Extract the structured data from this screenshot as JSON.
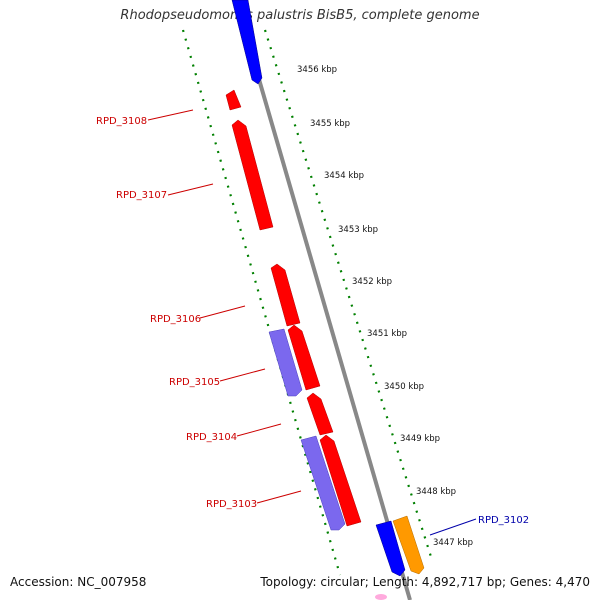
{
  "title": "Rhodopseudomonas palustris BisB5, complete genome",
  "footer": {
    "accession": "Accession: NC_007958",
    "summary": "Topology: circular; Length: 4,892,717 bp; Genes: 4,470"
  },
  "colors": {
    "backbone": "#8a8a8a",
    "forward_gene": "#ff0000",
    "reverse_gene_dark": "#0000ff",
    "reverse_gene_light": "#7b68ee",
    "highlight_gene": "#ff9900",
    "tick": "#008000",
    "label_red": "#cc0000",
    "label_blue": "#0000aa"
  },
  "scale_labels": [
    "3456 kbp",
    "3455 kbp",
    "3454 kbp",
    "3453 kbp",
    "3452 kbp",
    "3451 kbp",
    "3450 kbp",
    "3449 kbp",
    "3448 kbp",
    "3447 kbp"
  ],
  "gene_labels": [
    {
      "name": "RPD_3108",
      "color": "red"
    },
    {
      "name": "RPD_3107",
      "color": "red"
    },
    {
      "name": "RPD_3106",
      "color": "red"
    },
    {
      "name": "RPD_3105",
      "color": "red"
    },
    {
      "name": "RPD_3104",
      "color": "red"
    },
    {
      "name": "RPD_3103",
      "color": "red"
    },
    {
      "name": "RPD_3102",
      "color": "blue"
    }
  ]
}
